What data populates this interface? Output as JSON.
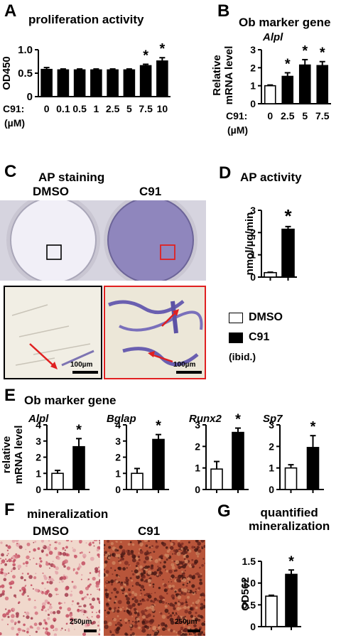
{
  "panels": {
    "A": {
      "label": "A",
      "title": "proliferation activity"
    },
    "B": {
      "label": "B",
      "title": "Ob marker gene",
      "subtitle": "Alpl"
    },
    "C": {
      "label": "C",
      "title": "AP staining",
      "dmso": "DMSO",
      "c91": "C91",
      "scale": "100µm"
    },
    "D": {
      "label": "D",
      "title": "AP activity"
    },
    "E": {
      "label": "E",
      "title": "Ob marker gene",
      "ylabel": "relative\nmRNA level"
    },
    "F": {
      "label": "F",
      "title": "mineralization",
      "dmso": "DMSO",
      "c91": "C91",
      "scale": "250µm"
    },
    "G": {
      "label": "G",
      "title": "quantified\nmineralization"
    }
  },
  "legend": {
    "dmso": "DMSO",
    "c91": "C91",
    "note": "(ibid.)"
  },
  "colors": {
    "bar_fill": "#000000",
    "dmso_fill": "#ffffff",
    "plate_stain": "#8a80b8",
    "highlight": "#e02020"
  },
  "chart_data": [
    {
      "id": "A",
      "type": "bar",
      "ylabel": "OD450",
      "xlabel_prefix": "C91:",
      "xunit": "(µM)",
      "categories": [
        "0",
        "0.1",
        "0.5",
        "1",
        "2.5",
        "5",
        "7.5",
        "10"
      ],
      "values": [
        0.58,
        0.57,
        0.57,
        0.57,
        0.57,
        0.57,
        0.66,
        0.76
      ],
      "errors": [
        0.04,
        0.02,
        0.02,
        0.02,
        0.02,
        0.02,
        0.03,
        0.07
      ],
      "significant": [
        false,
        false,
        false,
        false,
        false,
        false,
        true,
        true
      ],
      "ylim": [
        0,
        1.0
      ],
      "yticks": [
        "0",
        "0.5",
        "1.0"
      ]
    },
    {
      "id": "B",
      "type": "bar",
      "title": "Alpl",
      "ylabel": "Relative\nmRNA level",
      "xlabel_prefix": "C91:",
      "xunit": "(µM)",
      "categories": [
        "0",
        "2.5",
        "5",
        "7.5"
      ],
      "values": [
        1.0,
        1.52,
        2.15,
        2.12
      ],
      "errors": [
        0.04,
        0.2,
        0.3,
        0.22
      ],
      "significant": [
        false,
        true,
        true,
        true
      ],
      "fill": [
        "white",
        "black",
        "black",
        "black"
      ],
      "ylim": [
        0,
        3
      ],
      "yticks": [
        "0",
        "1",
        "2",
        "3"
      ]
    },
    {
      "id": "D",
      "type": "bar",
      "ylabel": "nmol/µg/min",
      "categories": [
        "DMSO",
        "C91"
      ],
      "values": [
        0.2,
        2.15
      ],
      "errors": [
        0.02,
        0.12
      ],
      "significant": [
        false,
        true
      ],
      "fill": [
        "white",
        "black"
      ],
      "ylim": [
        0,
        3
      ],
      "yticks": [
        "0",
        "1",
        "2",
        "3"
      ]
    },
    {
      "id": "E1",
      "type": "bar",
      "title": "Alpl",
      "categories": [
        "DMSO",
        "C91"
      ],
      "values": [
        1.0,
        2.65
      ],
      "errors": [
        0.18,
        0.5
      ],
      "significant": [
        false,
        true
      ],
      "fill": [
        "white",
        "black"
      ],
      "ylim": [
        0,
        4
      ],
      "yticks": [
        "0",
        "1",
        "2",
        "3",
        "4"
      ]
    },
    {
      "id": "E2",
      "type": "bar",
      "title": "Bglap",
      "categories": [
        "DMSO",
        "C91"
      ],
      "values": [
        1.0,
        3.1
      ],
      "errors": [
        0.3,
        0.3
      ],
      "significant": [
        false,
        true
      ],
      "fill": [
        "white",
        "black"
      ],
      "ylim": [
        0,
        4
      ],
      "yticks": [
        "0",
        "1",
        "2",
        "3",
        "4"
      ]
    },
    {
      "id": "E3",
      "type": "bar",
      "title": "Runx2",
      "categories": [
        "DMSO",
        "C91"
      ],
      "values": [
        0.95,
        2.65
      ],
      "errors": [
        0.35,
        0.2
      ],
      "significant": [
        false,
        true
      ],
      "fill": [
        "white",
        "black"
      ],
      "ylim": [
        0,
        3
      ],
      "yticks": [
        "0",
        "1",
        "2",
        "3"
      ]
    },
    {
      "id": "E4",
      "type": "bar",
      "title": "Sp7",
      "categories": [
        "DMSO",
        "C91"
      ],
      "values": [
        1.0,
        1.95
      ],
      "errors": [
        0.15,
        0.55
      ],
      "significant": [
        false,
        true
      ],
      "fill": [
        "white",
        "black"
      ],
      "ylim": [
        0,
        3
      ],
      "yticks": [
        "0",
        "1",
        "2",
        "3"
      ]
    },
    {
      "id": "G",
      "type": "bar",
      "ylabel": "OD562",
      "categories": [
        "DMSO",
        "C91"
      ],
      "values": [
        0.7,
        1.2
      ],
      "errors": [
        0.02,
        0.1
      ],
      "significant": [
        false,
        true
      ],
      "fill": [
        "white",
        "black"
      ],
      "ylim": [
        0,
        1.5
      ],
      "yticks": [
        "0",
        "0.5",
        "1.0",
        "1.5"
      ]
    }
  ]
}
